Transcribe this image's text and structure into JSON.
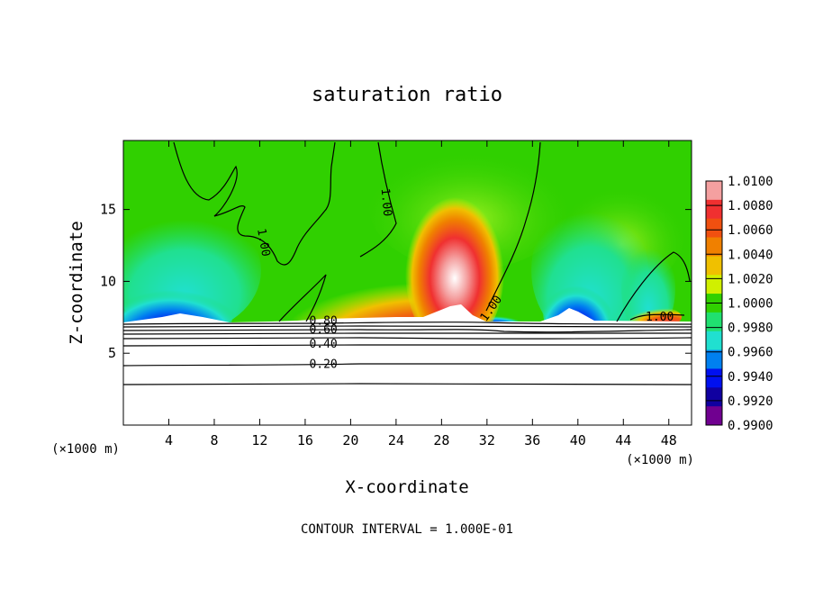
{
  "chart_data": {
    "type": "heatmap",
    "title": "saturation ratio",
    "xlabel": "X-coordinate",
    "ylabel": "Z-coordinate",
    "x_unit": "(×1000 m)",
    "xlim": [
      0,
      50
    ],
    "ylim": [
      0,
      19.8
    ],
    "x_ticks": [
      4,
      8,
      12,
      16,
      20,
      24,
      28,
      32,
      36,
      40,
      44,
      48
    ],
    "y_ticks": [
      5,
      10,
      15
    ],
    "footer": "CONTOUR INTERVAL = 1.000E-01",
    "colorbar": {
      "min": 0.99,
      "max": 1.01,
      "labels": [
        "1.0100",
        "1.0080",
        "1.0060",
        "1.0040",
        "1.0020",
        "1.0000",
        "0.9980",
        "0.9960",
        "0.9940",
        "0.9920",
        "0.9900"
      ],
      "colors": [
        "#f4a0a0",
        "#f03030",
        "#f05010",
        "#f08000",
        "#f0c000",
        "#d0f000",
        "#30d000",
        "#20e070",
        "#20e0d0",
        "#0080f0",
        "#0010f0",
        "#1000a0",
        "#700090"
      ]
    },
    "contour_labels": [
      {
        "text": "1.00",
        "x": 12.3,
        "z": 12.7,
        "angle": 80
      },
      {
        "text": "1.00",
        "x": 23.1,
        "z": 15.5,
        "angle": 85
      },
      {
        "text": "1.00",
        "x": 32.4,
        "z": 8.1,
        "angle": -55
      },
      {
        "text": "1.00",
        "x": 47.2,
        "z": 7.5,
        "angle": 0
      },
      {
        "text": "0.80",
        "x": 17.6,
        "z": 7.2,
        "angle": 0
      },
      {
        "text": "0.60",
        "x": 17.6,
        "z": 6.6,
        "angle": 0
      },
      {
        "text": "0.40",
        "x": 17.6,
        "z": 5.6,
        "angle": 0
      },
      {
        "text": "0.20",
        "x": 17.6,
        "z": 4.2,
        "angle": 0
      }
    ]
  }
}
